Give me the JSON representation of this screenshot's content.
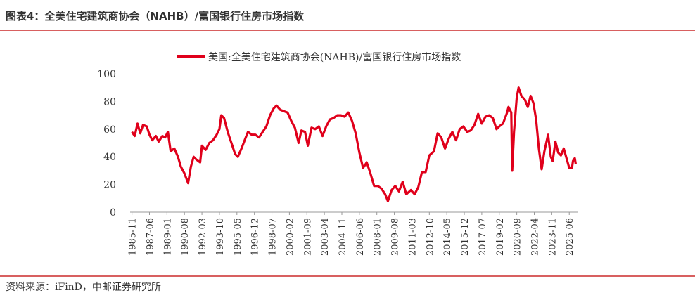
{
  "header": {
    "title": "图表4：全美住宅建筑商协会（NAHB）/富国银行住房市场指数"
  },
  "chart_data": {
    "type": "line",
    "series": [
      {
        "name": "美国:全美住宅建筑商协会(NAHB)/富国银行住房市场指数",
        "color": "#e0001b",
        "x": [
          "1985-11",
          "1986-02",
          "1986-05",
          "1986-08",
          "1986-11",
          "1987-03",
          "1987-06",
          "1987-09",
          "1988-01",
          "1988-04",
          "1988-08",
          "1988-11",
          "1989-02",
          "1989-05",
          "1989-09",
          "1990-01",
          "1990-04",
          "1990-08",
          "1990-12",
          "1991-03",
          "1991-06",
          "1991-09",
          "1992-01",
          "1992-03",
          "1992-07",
          "1992-11",
          "1993-03",
          "1993-07",
          "1993-10",
          "1993-12",
          "1994-03",
          "1994-07",
          "1994-11",
          "1995-03",
          "1995-06",
          "1995-10",
          "1996-02",
          "1996-05",
          "1996-09",
          "1997-01",
          "1997-05",
          "1997-09",
          "1998-01",
          "1998-05",
          "1998-09",
          "1998-12",
          "1999-04",
          "1999-08",
          "1999-12",
          "2000-04",
          "2000-08",
          "2000-12",
          "2001-03",
          "2001-07",
          "2001-10",
          "2002-02",
          "2002-06",
          "2002-10",
          "2003-02",
          "2003-06",
          "2003-10",
          "2004-02",
          "2004-06",
          "2004-10",
          "2005-02",
          "2005-06",
          "2005-10",
          "2006-02",
          "2006-06",
          "2006-10",
          "2007-02",
          "2007-06",
          "2007-10",
          "2008-02",
          "2008-06",
          "2008-10",
          "2009-01",
          "2009-05",
          "2009-09",
          "2010-01",
          "2010-05",
          "2010-09",
          "2011-02",
          "2011-06",
          "2011-10",
          "2012-02",
          "2012-06",
          "2012-10",
          "2013-03",
          "2013-07",
          "2013-11",
          "2014-03",
          "2014-07",
          "2014-11",
          "2015-03",
          "2015-07",
          "2015-11",
          "2016-03",
          "2016-07",
          "2016-11",
          "2017-03",
          "2017-07",
          "2017-11",
          "2018-03",
          "2018-07",
          "2018-11",
          "2019-02",
          "2019-06",
          "2019-10",
          "2019-12",
          "2020-03",
          "2020-04",
          "2020-06",
          "2020-09",
          "2020-11",
          "2021-02",
          "2021-06",
          "2021-09",
          "2021-12",
          "2022-03",
          "2022-06",
          "2022-09",
          "2022-12",
          "2023-03",
          "2023-07",
          "2023-10",
          "2023-12",
          "2024-03",
          "2024-06",
          "2024-09",
          "2024-12",
          "2025-03",
          "2025-06",
          "2025-09",
          "2025-10",
          "2025-12",
          "2026-01"
        ],
        "values": [
          58,
          55,
          64,
          57,
          63,
          62,
          56,
          52,
          55,
          51,
          55,
          54,
          58,
          44,
          46,
          40,
          33,
          28,
          21,
          33,
          40,
          38,
          36,
          48,
          45,
          50,
          52,
          56,
          60,
          70,
          68,
          58,
          50,
          42,
          40,
          46,
          53,
          58,
          56,
          56,
          54,
          58,
          62,
          70,
          75,
          77,
          74,
          73,
          72,
          66,
          61,
          50,
          59,
          58,
          48,
          61,
          60,
          62,
          55,
          62,
          67,
          68,
          70,
          70,
          69,
          72,
          66,
          57,
          43,
          32,
          36,
          28,
          19,
          19,
          17,
          13,
          8,
          16,
          19,
          15,
          22,
          13,
          16,
          13,
          18,
          29,
          29,
          41,
          44,
          57,
          54,
          46,
          53,
          58,
          52,
          60,
          62,
          58,
          59,
          63,
          71,
          64,
          69,
          70,
          68,
          60,
          62,
          64,
          71,
          76,
          72,
          30,
          58,
          83,
          90,
          84,
          81,
          76,
          84,
          79,
          67,
          46,
          31,
          44,
          56,
          40,
          37,
          51,
          43,
          41,
          46,
          39,
          32,
          32,
          37,
          39,
          35
        ]
      }
    ],
    "xlim": [
      "1985-09",
      "2026-03"
    ],
    "xticks": [
      "1985-11",
      "1987-06",
      "1989-01",
      "1990-08",
      "1992-03",
      "1993-10",
      "1995-05",
      "1996-12",
      "1998-07",
      "2000-02",
      "2001-09",
      "2003-04",
      "2004-11",
      "2006-06",
      "2008-01",
      "2009-08",
      "2011-03",
      "2012-10",
      "2014-05",
      "2015-12",
      "2017-07",
      "2019-02",
      "2020-09",
      "2022-04",
      "2023-11",
      "2025-06"
    ],
    "ylim": [
      0,
      100
    ],
    "yticks": [
      0,
      20,
      40,
      60,
      80,
      100
    ],
    "legend": "top"
  },
  "footer": {
    "source": "资料来源：iFinD，中邮证券研究所"
  }
}
